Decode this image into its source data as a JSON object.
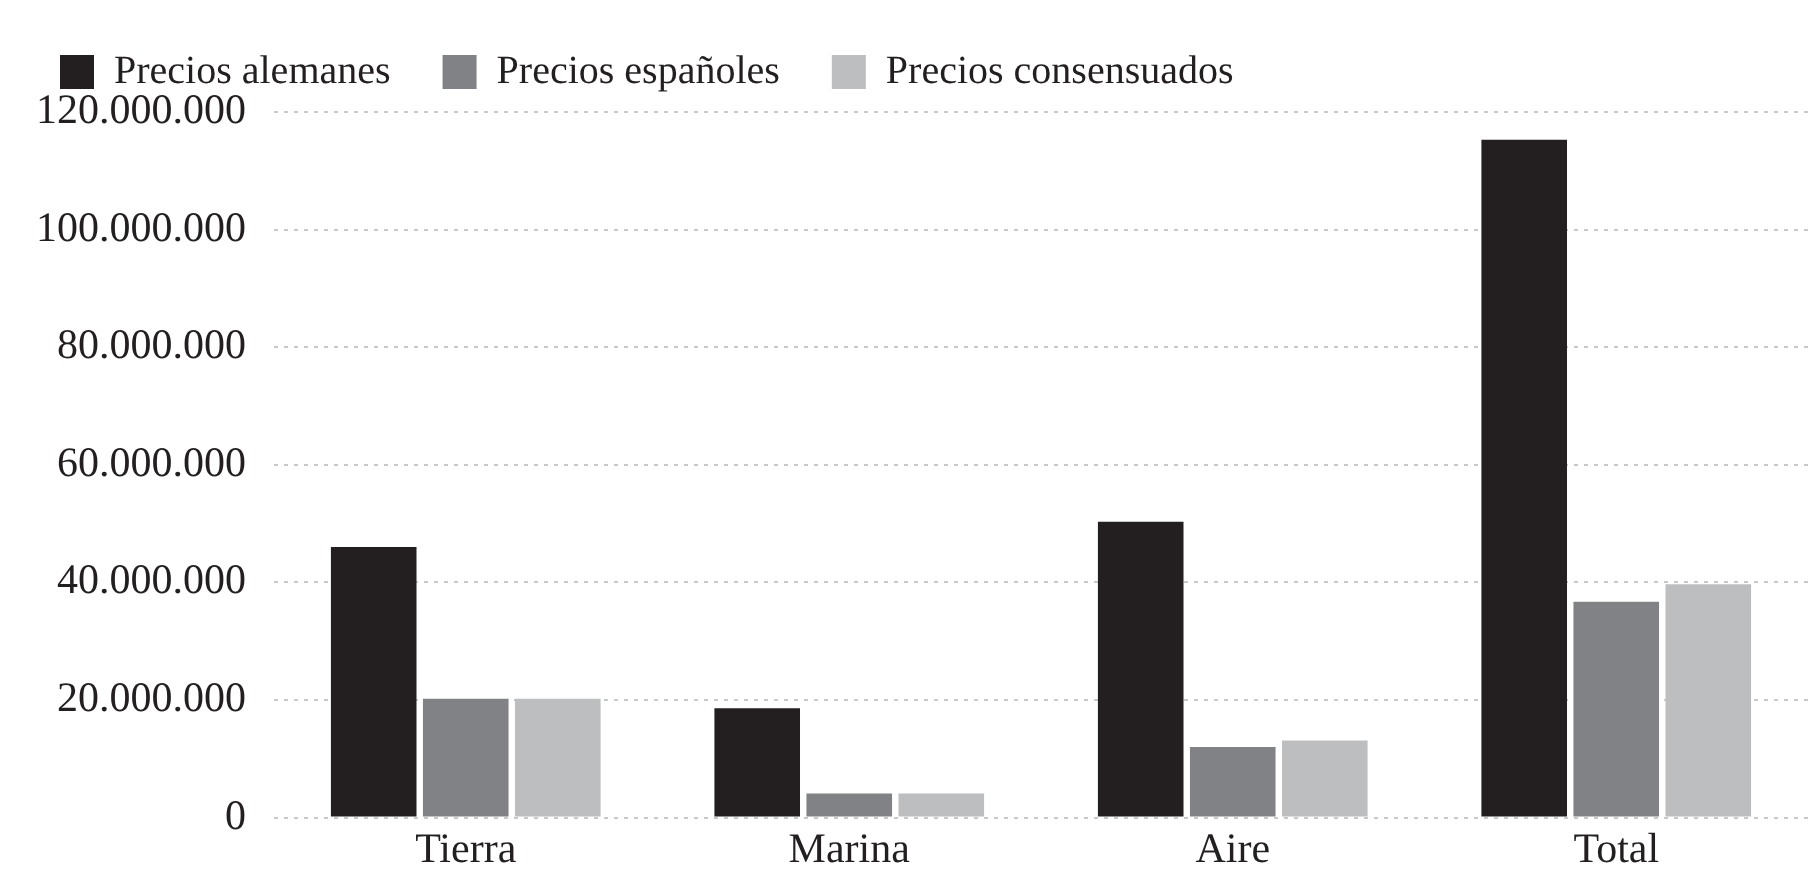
{
  "chart_data": {
    "type": "bar",
    "categories": [
      "Tierra",
      "Marina",
      "Aire",
      "Total"
    ],
    "series": [
      {
        "name": "Precios alemanes",
        "color": "#231f20",
        "values": [
          46000000,
          18600000,
          50300000,
          115300000
        ]
      },
      {
        "name": "Precios españoles",
        "color": "#808285",
        "values": [
          20200000,
          4100000,
          12000000,
          36700000
        ]
      },
      {
        "name": "Precios consensuados",
        "color": "#bcbec0",
        "values": [
          20200000,
          4100000,
          13100000,
          39700000
        ]
      }
    ],
    "ylim": [
      0,
      120000000
    ],
    "yticks": [
      {
        "value": 0,
        "label": "0"
      },
      {
        "value": 20000000,
        "label": "20.000.000"
      },
      {
        "value": 40000000,
        "label": "40.000.000"
      },
      {
        "value": 60000000,
        "label": "60.000.000"
      },
      {
        "value": 80000000,
        "label": "80.000.000"
      },
      {
        "value": 100000000,
        "label": "100.000.000"
      },
      {
        "value": 120000000,
        "label": "120.000.000"
      }
    ],
    "grid": "y",
    "legend": "top left"
  }
}
